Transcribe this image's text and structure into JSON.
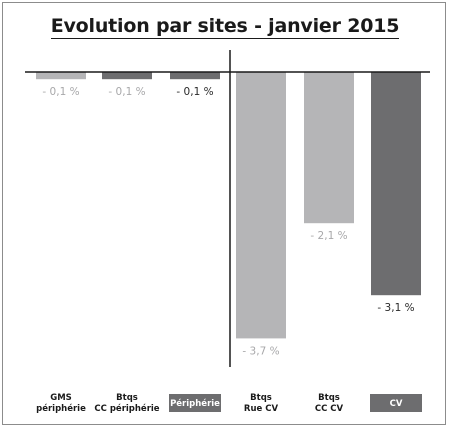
{
  "chart_data": {
    "type": "bar",
    "title": "Evolution par sites - janvier 2015",
    "categories": [
      {
        "lines": [
          "GMS",
          "périphérie"
        ],
        "boxed": false
      },
      {
        "lines": [
          "Btqs",
          "CC périphérie"
        ],
        "boxed": false
      },
      {
        "lines": [
          "Périphérie"
        ],
        "boxed": true
      },
      {
        "lines": [
          "Btqs",
          "Rue CV"
        ],
        "boxed": false
      },
      {
        "lines": [
          "Btqs",
          "CC CV"
        ],
        "boxed": false
      },
      {
        "lines": [
          "CV"
        ],
        "boxed": true
      }
    ],
    "values": [
      -0.1,
      -0.1,
      -0.1,
      -3.7,
      -2.1,
      -3.1
    ],
    "value_labels": [
      "- 0,1 %",
      "- 0,1 %",
      "- 0,1 %",
      "- 3,7 %",
      "- 2,1 %",
      "- 3,1 %"
    ],
    "bar_colors": [
      "#b5b5b7",
      "#6d6d6f",
      "#6d6d6f",
      "#b5b5b7",
      "#b5b5b7",
      "#6d6d6f"
    ],
    "label_colors": [
      "#a8a8aa",
      "#a8a8aa",
      "#2a2a2a",
      "#a8a8aa",
      "#a8a8aa",
      "#2a2a2a"
    ],
    "ylim": [
      -4.0,
      0
    ],
    "xlabel": "",
    "ylabel": "",
    "grid": false,
    "legend": "none",
    "group_separator_after_index": 2,
    "colors": {
      "light_bar": "#b5b5b7",
      "dark_bar": "#6d6d6f",
      "box": "#6d6d6f",
      "axis": "#1a1a1a"
    }
  }
}
